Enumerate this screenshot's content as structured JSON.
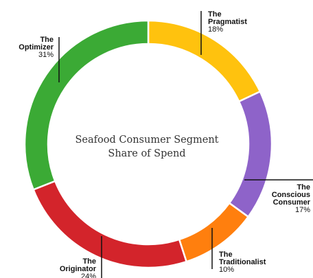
{
  "chart_data": {
    "type": "pie",
    "donut": true,
    "center_title": [
      "Seafood Consumer Segment",
      "Share of Spend"
    ],
    "start_angle_deg": 0,
    "slices": [
      {
        "name_lines": [
          "The",
          "Pragmatist"
        ],
        "label": "The Pragmatist",
        "pct_text": "18%",
        "value": 18,
        "color": "#FFC20E"
      },
      {
        "name_lines": [
          "The",
          "Conscious",
          "Consumer"
        ],
        "label": "The Conscious Consumer",
        "pct_text": "17%",
        "value": 17,
        "color": "#8E63C9"
      },
      {
        "name_lines": [
          "The",
          "Traditionalist"
        ],
        "label": "The Traditionalist",
        "pct_text": "10%",
        "value": 10,
        "color": "#FF7F0E"
      },
      {
        "name_lines": [
          "The",
          "Originator"
        ],
        "label": "The Originator",
        "pct_text": "24%",
        "value": 24,
        "color": "#D3242B"
      },
      {
        "name_lines": [
          "The",
          "Optimizer"
        ],
        "label": "The Optimizer",
        "pct_text": "31%",
        "value": 31,
        "color": "#3BAA35"
      }
    ]
  }
}
